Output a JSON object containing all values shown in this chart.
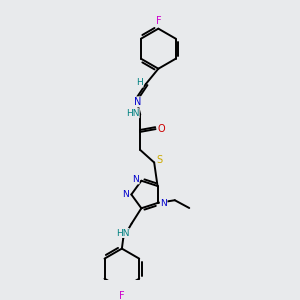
{
  "bg_color": "#e8eaec",
  "atom_colors": {
    "C": "#000000",
    "N": "#0000cc",
    "O": "#cc0000",
    "S": "#ccaa00",
    "F": "#cc00cc",
    "H": "#008080"
  },
  "bond_color": "#000000",
  "line_width": 1.4,
  "figsize": [
    3.0,
    3.0
  ],
  "dpi": 100
}
